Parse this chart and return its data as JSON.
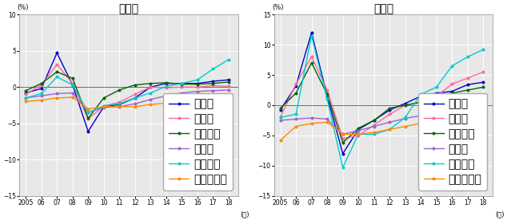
{
  "years": [
    2005,
    2006,
    2007,
    2008,
    2009,
    2010,
    2011,
    2012,
    2013,
    2014,
    2015,
    2016,
    2017,
    2018
  ],
  "title_left": "住宅地",
  "title_right": "商業地",
  "ylabel": "(%)",
  "xlabel": "(年)",
  "ylim_left": [
    -15,
    10
  ],
  "ylim_right": [
    -15,
    15
  ],
  "yticks_left": [
    -15,
    -10,
    -5,
    0,
    5,
    10
  ],
  "yticks_right": [
    -15,
    -10,
    -5,
    0,
    5,
    10,
    15
  ],
  "legend_labels": [
    "東京圈",
    "大阪圈",
    "名古屋圈",
    "地方圈",
    "地方四市",
    "地方その他"
  ],
  "colors": [
    "#0000cc",
    "#ff6699",
    "#006600",
    "#9966cc",
    "#00cccc",
    "#ff8800"
  ],
  "bg_color": "#e8e8e8",
  "left": {
    "tokyo": [
      -0.8,
      -0.2,
      4.7,
      0.3,
      -6.1,
      -2.7,
      -2.4,
      -1.5,
      0.0,
      0.5,
      0.5,
      0.5,
      0.8,
      1.0
    ],
    "osaka": [
      -1.0,
      0.3,
      3.1,
      0.5,
      -4.4,
      -2.6,
      -2.1,
      -1.0,
      0.0,
      -0.1,
      0.0,
      0.0,
      0.2,
      0.1
    ],
    "nagoya": [
      -0.5,
      0.5,
      2.1,
      1.2,
      -4.3,
      -1.5,
      -0.4,
      0.3,
      0.5,
      0.6,
      0.4,
      0.4,
      0.5,
      0.7
    ],
    "chiho": [
      -1.5,
      -1.2,
      -0.9,
      -0.8,
      -3.5,
      -2.8,
      -2.7,
      -2.3,
      -1.7,
      -1.2,
      -0.8,
      -0.6,
      -0.5,
      -0.4
    ],
    "chihoshi": [
      -1.5,
      -0.9,
      1.4,
      0.3,
      -3.5,
      -2.6,
      -2.3,
      -1.5,
      -0.8,
      0.1,
      0.5,
      1.0,
      2.5,
      3.8
    ],
    "chihosonota": [
      -2.0,
      -1.8,
      -1.5,
      -1.4,
      -3.0,
      -2.7,
      -2.7,
      -2.7,
      -2.4,
      -2.2,
      -1.8,
      -1.7,
      -1.6,
      -1.5
    ]
  },
  "right": {
    "tokyo": [
      -0.8,
      3.2,
      12.0,
      1.5,
      -8.0,
      -4.0,
      -2.5,
      -0.8,
      0.3,
      1.5,
      2.0,
      2.3,
      3.4,
      3.8
    ],
    "osaka": [
      -2.0,
      3.5,
      8.0,
      2.5,
      -5.5,
      -5.0,
      -3.3,
      -1.5,
      0.0,
      0.5,
      1.5,
      3.5,
      4.5,
      5.5
    ],
    "nagoya": [
      -0.5,
      2.0,
      7.0,
      1.8,
      -6.2,
      -3.8,
      -2.5,
      -0.5,
      0.0,
      0.5,
      1.5,
      2.0,
      2.5,
      3.0
    ],
    "chiho": [
      -2.5,
      -2.3,
      -2.1,
      -2.3,
      -4.8,
      -4.2,
      -3.5,
      -2.8,
      -2.2,
      -1.7,
      -1.3,
      -1.0,
      -0.6,
      -0.2
    ],
    "chihoshi": [
      -2.0,
      -1.5,
      11.5,
      1.0,
      -10.3,
      -4.8,
      -4.8,
      -4.0,
      -2.0,
      1.8,
      3.0,
      6.5,
      8.0,
      9.2
    ],
    "chihosonota": [
      -5.8,
      -3.5,
      -3.0,
      -2.8,
      -4.8,
      -4.8,
      -4.5,
      -4.0,
      -3.5,
      -3.0,
      -2.5,
      -2.0,
      -1.0,
      -0.5
    ]
  }
}
